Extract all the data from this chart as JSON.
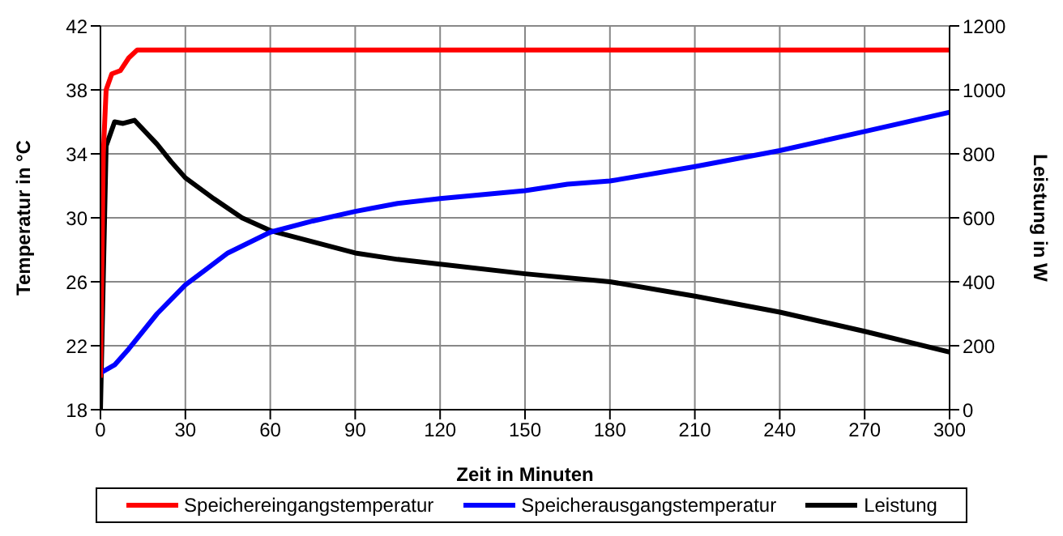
{
  "chart_data": {
    "type": "line",
    "xlabel": "Zeit in Minuten",
    "ylabel": "Temperatur in °C",
    "y2label": "Leistung in W",
    "xlim": [
      0,
      300
    ],
    "xticks": [
      0,
      30,
      60,
      90,
      120,
      150,
      180,
      210,
      240,
      270,
      300
    ],
    "ylim": [
      18,
      42
    ],
    "yticks": [
      18,
      22,
      26,
      30,
      34,
      38,
      42
    ],
    "y2lim": [
      0,
      1200
    ],
    "y2ticks": [
      0,
      200,
      400,
      600,
      800,
      1000,
      1200
    ],
    "grid": true,
    "legend": "bottom",
    "marker": "none",
    "line_style": "solid",
    "series": [
      {
        "name": "Speichereingangstemperatur",
        "color": "#ff0000",
        "x": [
          0,
          1,
          2,
          4,
          7,
          10,
          13,
          60,
          120,
          180,
          240,
          300
        ],
        "values": [
          20,
          34,
          38,
          39,
          39.2,
          40,
          40.5,
          40.5,
          40.5,
          40.5,
          40.5,
          40.5
        ]
      },
      {
        "name": "Speicherausgangstemperatur",
        "color": "#0000ff",
        "x": [
          0,
          5,
          10,
          20,
          30,
          45,
          60,
          75,
          90,
          105,
          120,
          150,
          165,
          180,
          210,
          240,
          270,
          300
        ],
        "values": [
          20.3,
          20.8,
          21.8,
          24,
          25.8,
          27.8,
          29.1,
          29.8,
          30.4,
          30.9,
          31.2,
          31.7,
          32.1,
          32.3,
          33.2,
          34.2,
          35.4,
          36.6
        ]
      },
      {
        "name": "Leistung",
        "color": "#000000",
        "axis": "y2",
        "x": [
          0,
          2,
          5,
          8,
          12,
          20,
          25,
          30,
          40,
          50,
          60,
          75,
          90,
          105,
          120,
          150,
          180,
          210,
          240,
          270,
          300
        ],
        "values": [
          0,
          825,
          900,
          895,
          905,
          830,
          775,
          725,
          660,
          600,
          560,
          525,
          490,
          470,
          455,
          425,
          400,
          355,
          305,
          245,
          180
        ]
      }
    ]
  }
}
